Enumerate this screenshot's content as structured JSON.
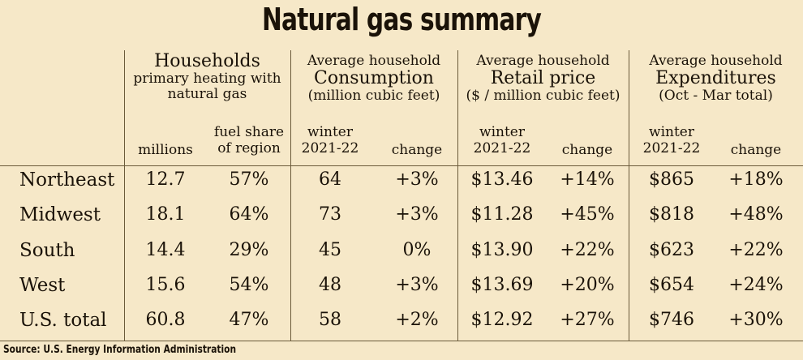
{
  "chart_data": {
    "type": "table",
    "title": "Natural gas summary",
    "groups": [
      {
        "lines": [
          "Households",
          "primary heating with",
          "natural gas"
        ]
      },
      {
        "lines": [
          "Average household",
          "Consumption",
          "(million cubic feet)"
        ]
      },
      {
        "lines": [
          "Average household",
          "Retail price",
          "($ / million cubic feet)"
        ]
      },
      {
        "lines": [
          "Average household",
          "Expenditures",
          "(Oct - Mar total)"
        ]
      }
    ],
    "columns": [
      [
        "millions"
      ],
      [
        "fuel share",
        "of region"
      ],
      [
        "winter",
        "2021-22"
      ],
      [
        "change"
      ],
      [
        "winter",
        "2021-22"
      ],
      [
        "change"
      ],
      [
        "winter",
        "2021-22"
      ],
      [
        "change"
      ]
    ],
    "rows": [
      {
        "label": "Northeast",
        "values": [
          "12.7",
          "57%",
          "64",
          "+3%",
          "$13.46",
          "+14%",
          "$865",
          "+18%"
        ]
      },
      {
        "label": "Midwest",
        "values": [
          "18.1",
          "64%",
          "73",
          "+3%",
          "$11.28",
          "+45%",
          "$818",
          "+48%"
        ]
      },
      {
        "label": "South",
        "values": [
          "14.4",
          "29%",
          "45",
          "0%",
          "$13.90",
          "+22%",
          "$623",
          "+22%"
        ]
      },
      {
        "label": "West",
        "values": [
          "15.6",
          "54%",
          "48",
          "+3%",
          "$13.69",
          "+20%",
          "$654",
          "+24%"
        ]
      },
      {
        "label": "U.S. total",
        "values": [
          "60.8",
          "47%",
          "58",
          "+2%",
          "$12.92",
          "+27%",
          "$746",
          "+30%"
        ]
      }
    ],
    "source": "Source: U.S. Energy Information Administration"
  }
}
